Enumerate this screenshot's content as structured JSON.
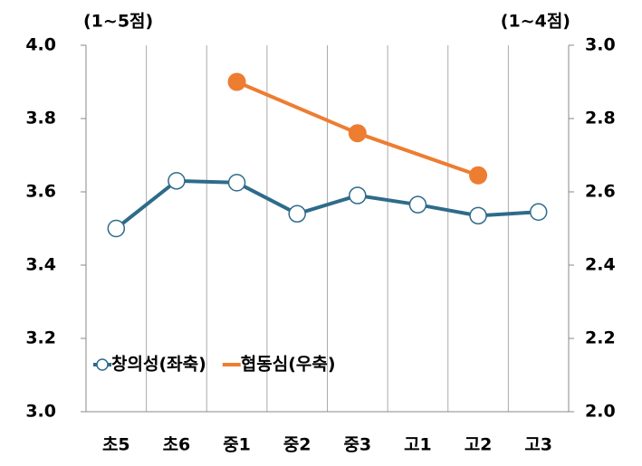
{
  "chart_data": {
    "type": "line",
    "y_label": "(1~5점)",
    "y2_label": "(1~4점)",
    "categories": [
      "초5",
      "초6",
      "중1",
      "중2",
      "중3",
      "고1",
      "고2",
      "고3"
    ],
    "series": [
      {
        "name": "창의성(좌축)",
        "color": "#2e6b8a",
        "marker": "hollow",
        "axis": "y",
        "values": [
          3.5,
          3.63,
          3.625,
          3.54,
          3.59,
          3.565,
          3.535,
          3.545
        ]
      },
      {
        "name": "협동심(우축)",
        "color": "#ed7d31",
        "marker": "filled",
        "axis": "y2",
        "connect_gaps": true,
        "values": [
          null,
          null,
          2.9,
          null,
          2.76,
          null,
          2.645,
          null
        ]
      }
    ],
    "ylim": [
      3.0,
      4.0
    ],
    "yticks": [
      {
        "value": 3.0,
        "label": "3.0"
      },
      {
        "value": 3.2,
        "label": "3.2"
      },
      {
        "value": 3.4,
        "label": "3.4"
      },
      {
        "value": 3.6,
        "label": "3.6"
      },
      {
        "value": 3.8,
        "label": "3.8"
      },
      {
        "value": 4.0,
        "label": "4.0"
      }
    ],
    "y2lim": [
      2.0,
      3.0
    ],
    "y2ticks": [
      {
        "value": 2.0,
        "label": "2.0"
      },
      {
        "value": 2.2,
        "label": "2.2"
      },
      {
        "value": 2.4,
        "label": "2.4"
      },
      {
        "value": 2.6,
        "label": "2.6"
      },
      {
        "value": 2.8,
        "label": "2.8"
      },
      {
        "value": 3.0,
        "label": "3.0"
      }
    ]
  }
}
